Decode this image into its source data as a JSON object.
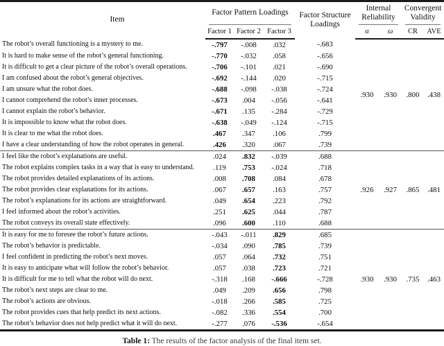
{
  "table": {
    "headers": {
      "item": "Item",
      "factor_pattern": "Factor Pattern Loadings",
      "factor_structure_line1": "Factor Structure",
      "factor_structure_line2": "Loadings",
      "internal_reliability_line1": "Internal",
      "internal_reliability_line2": "Reliability",
      "convergent_validity_line1": "Convergent",
      "convergent_validity_line2": "Validity",
      "factor1": "Factor 1",
      "factor2": "Factor 2",
      "factor3": "Factor 3",
      "alpha": "α",
      "omega": "ω",
      "cr": "CR",
      "ave": "AVE"
    },
    "blocks": [
      {
        "bold_column": 1,
        "reliability": {
          "alpha": ".930",
          "omega": ".930",
          "cr": ".800",
          "ave": ".438"
        },
        "rows": [
          {
            "item": "The robot’s overall functioning is a mystery to me.",
            "loadings": [
              "-.797",
              "-.008",
              ".032"
            ],
            "structure": "-.683"
          },
          {
            "item": "It is hard to make sense of the robot’s general functioning.",
            "loadings": [
              "-.770",
              "-.032",
              ".058"
            ],
            "structure": "-.656"
          },
          {
            "item": "It is difficult to get a clear picture of the robot’s overall operations.",
            "loadings": [
              "-.706",
              "-.101",
              ".021"
            ],
            "structure": "-.690"
          },
          {
            "item": "I am confused about the robot’s general objectives.",
            "loadings": [
              "-.692",
              "-.144",
              ".020"
            ],
            "structure": "-.715"
          },
          {
            "item": "I am unsure what the robot does.",
            "loadings": [
              "-.688",
              "-.098",
              "-.038"
            ],
            "structure": "-.724"
          },
          {
            "item": "I cannot comprehend the robot’s inner processes.",
            "loadings": [
              "-.673",
              ".004",
              "-.056"
            ],
            "structure": "-.641"
          },
          {
            "item": "I cannot explain the robot’s behavior.",
            "loadings": [
              "-.671",
              ".135",
              "-.284"
            ],
            "structure": "-.729"
          },
          {
            "item": "It is impossible to know what the robot does.",
            "loadings": [
              "-.638",
              "-.049",
              "-.124"
            ],
            "structure": "-.715"
          },
          {
            "item": "It is clear to me what the robot does.",
            "loadings": [
              ".467",
              ".347",
              ".106"
            ],
            "structure": ".799"
          },
          {
            "item": "I have a clear understanding of how the robot operates in general.",
            "loadings": [
              ".426",
              ".320",
              ".067"
            ],
            "structure": ".739"
          }
        ]
      },
      {
        "bold_column": 2,
        "reliability": {
          "alpha": ".926",
          "omega": ".927",
          "cr": ".865",
          "ave": ".481"
        },
        "rows": [
          {
            "item": "I feel like the robot’s explanations are useful.",
            "loadings": [
              ".024",
              ".832",
              "-.039"
            ],
            "structure": ".688"
          },
          {
            "item": "The robot explains complex tasks in a way that is easy to understand.",
            "loadings": [
              ".119",
              ".753",
              "-.024"
            ],
            "structure": ".718"
          },
          {
            "item": "The robot provides detailed explanations of its actions.",
            "loadings": [
              ".008",
              ".708",
              ".084"
            ],
            "structure": ".678"
          },
          {
            "item": "The robot provides clear explanations for its actions.",
            "loadings": [
              ".067",
              ".657",
              ".163"
            ],
            "structure": ".757"
          },
          {
            "item": "The robot’s explanations for its actions are straightforward.",
            "loadings": [
              ".049",
              ".654",
              ".223"
            ],
            "structure": ".792"
          },
          {
            "item": "I feel informed about the robot’s activities.",
            "loadings": [
              ".251",
              ".625",
              ".044"
            ],
            "structure": ".787"
          },
          {
            "item": "The robot conveys its overall state effectively.",
            "loadings": [
              ".096",
              ".600",
              ".110"
            ],
            "structure": ".688"
          }
        ]
      },
      {
        "bold_column": 3,
        "reliability": {
          "alpha": ".930",
          "omega": ".930",
          "cr": ".735",
          "ave": ".463"
        },
        "rows": [
          {
            "item": "It is easy for me to foresee the robot’s future actions.",
            "loadings": [
              "-.043",
              "-.011",
              ".829"
            ],
            "structure": ".685"
          },
          {
            "item": "The robot’s behavior is predictable.",
            "loadings": [
              "-.034",
              ".090",
              ".785"
            ],
            "structure": ".739"
          },
          {
            "item": "I feel confident in predicting the robot’s next moves.",
            "loadings": [
              ".057",
              ".064",
              ".732"
            ],
            "structure": ".751"
          },
          {
            "item": "It is easy to anticipate what will follow the robot’s behavior.",
            "loadings": [
              ".057",
              ".038",
              ".723"
            ],
            "structure": ".721"
          },
          {
            "item": "It is difficult for me to tell what the robot will do next.",
            "loadings": [
              "-.318",
              ".168",
              "-.666"
            ],
            "structure": "-.728"
          },
          {
            "item": "The robot’s next steps are clear to me.",
            "loadings": [
              ".049",
              ".209",
              ".656"
            ],
            "structure": ".798"
          },
          {
            "item": "The robot’s actions are obvious.",
            "loadings": [
              "-.018",
              ".266",
              ".585"
            ],
            "structure": ".725"
          },
          {
            "item": "The robot provides cues that help predict its next actions.",
            "loadings": [
              "-.082",
              ".336",
              ".554"
            ],
            "structure": ".700"
          },
          {
            "item": "The robot’s behavior does not help predict what it will do next.",
            "loadings": [
              "-.277",
              ".076",
              "-.536"
            ],
            "structure": "-.654"
          }
        ]
      }
    ]
  },
  "caption": {
    "label": "Table 1:",
    "text": "The results of the factor analysis of the final item set."
  }
}
